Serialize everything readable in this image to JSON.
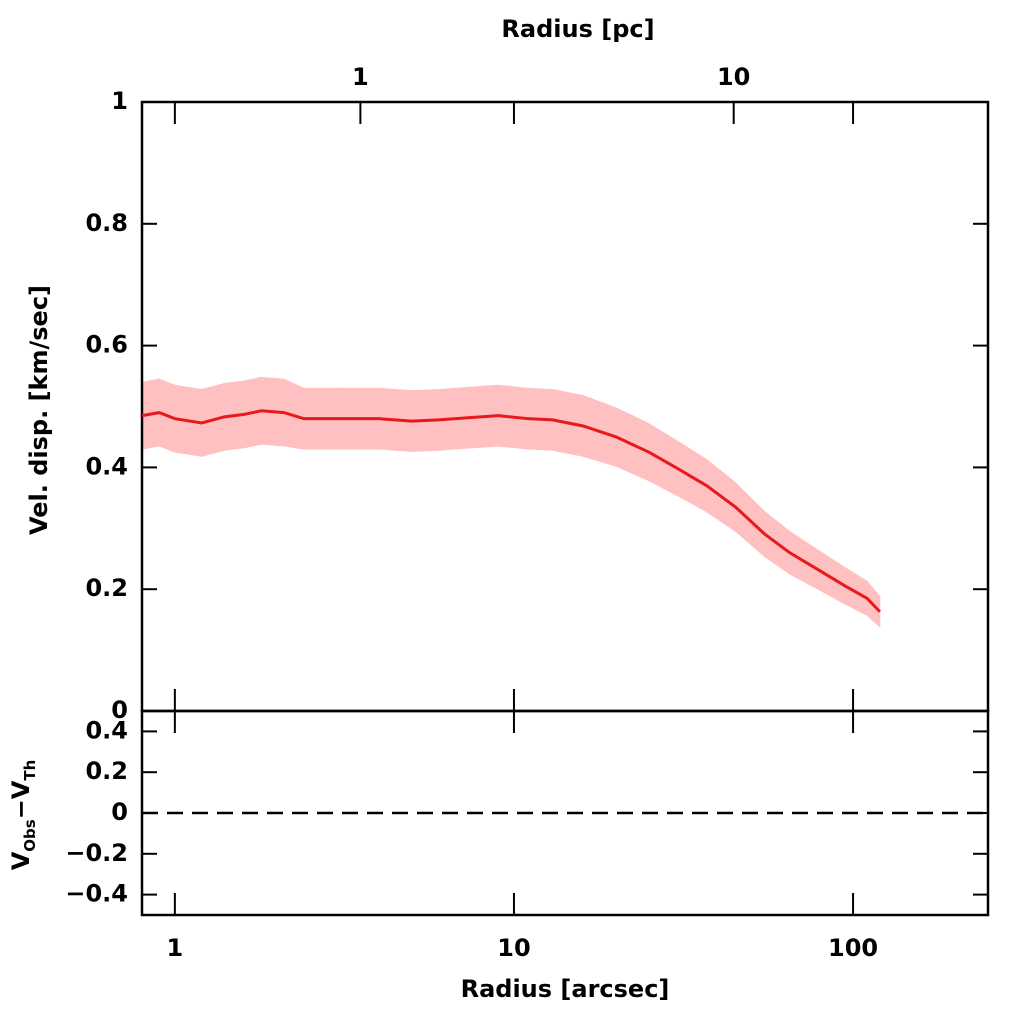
{
  "chart_data": [
    {
      "type": "line",
      "x2label": "Radius [pc]",
      "x2lim": [
        0.26,
        48
      ],
      "x2ticks": [
        1,
        10
      ],
      "ylabel": "Vel. disp. [km/sec]",
      "ylim": [
        0,
        1
      ],
      "yticks": [
        0,
        0.2,
        0.4,
        0.6,
        0.8,
        1
      ],
      "xlim": [
        0.8,
        250
      ],
      "xticks": [
        1,
        10,
        100
      ],
      "log_x": true,
      "x": [
        0.8,
        0.9,
        1.0,
        1.2,
        1.4,
        1.6,
        1.8,
        2.1,
        2.4,
        3.0,
        4.0,
        5.0,
        6.0,
        7.5,
        9.0,
        11,
        13,
        16,
        20,
        25,
        30,
        37,
        45,
        55,
        65,
        80,
        95,
        110,
        120
      ],
      "series": [
        {
          "color": "#e8191a",
          "band_color": "#ffc0c2",
          "values": [
            0.485,
            0.49,
            0.48,
            0.473,
            0.483,
            0.487,
            0.493,
            0.49,
            0.48,
            0.48,
            0.48,
            0.476,
            0.478,
            0.482,
            0.485,
            0.48,
            0.478,
            0.468,
            0.45,
            0.425,
            0.4,
            0.37,
            0.335,
            0.29,
            0.26,
            0.23,
            0.205,
            0.185,
            0.163
          ],
          "errors": [
            0.055,
            0.055,
            0.055,
            0.055,
            0.055,
            0.055,
            0.055,
            0.055,
            0.05,
            0.05,
            0.05,
            0.05,
            0.05,
            0.05,
            0.05,
            0.05,
            0.05,
            0.05,
            0.048,
            0.047,
            0.045,
            0.043,
            0.04,
            0.037,
            0.035,
            0.032,
            0.03,
            0.028,
            0.025
          ]
        }
      ]
    },
    {
      "type": "residual",
      "xlabel": "Radius [arcsec]",
      "xlim": [
        0.8,
        250
      ],
      "xticks": [
        1,
        10,
        100
      ],
      "log_x": true,
      "ylabel": [
        "V",
        "Obs",
        "−V",
        "Th"
      ],
      "ylim": [
        -0.5,
        0.5
      ],
      "yticks": [
        {
          "value": -0.4,
          "label": "−0.4"
        },
        {
          "value": -0.2,
          "label": "−0.2"
        },
        0,
        0.2,
        0.4
      ],
      "hline": 0
    }
  ]
}
